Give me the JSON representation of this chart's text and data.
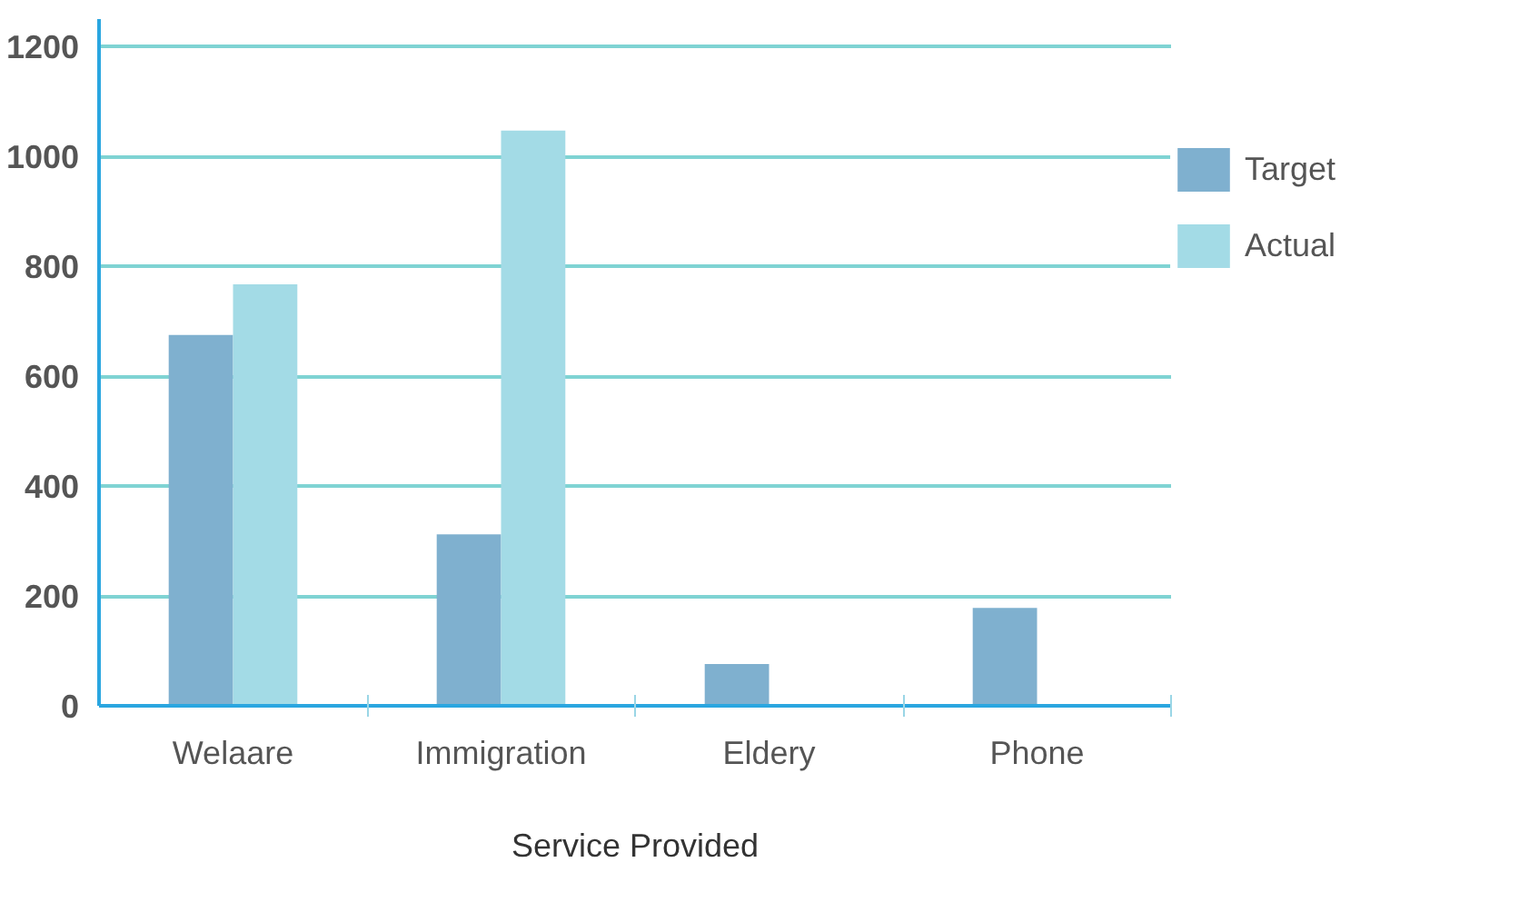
{
  "chart_data": {
    "type": "bar",
    "xlabel": "Service Provided",
    "categories": [
      "Welaare",
      "Immigration",
      "Eldery",
      "Phone"
    ],
    "series": [
      {
        "name": "Target",
        "color": "#7fb0cf",
        "values": [
          675,
          312,
          76,
          178
        ]
      },
      {
        "name": "Actual",
        "color": "#a3dbe6",
        "values": [
          767,
          1047,
          null,
          null
        ]
      }
    ],
    "ylim": [
      0,
      1250
    ],
    "yticks": [
      0,
      200,
      400,
      600,
      800,
      1000,
      1200
    ],
    "grid": "y",
    "legend": "right"
  }
}
